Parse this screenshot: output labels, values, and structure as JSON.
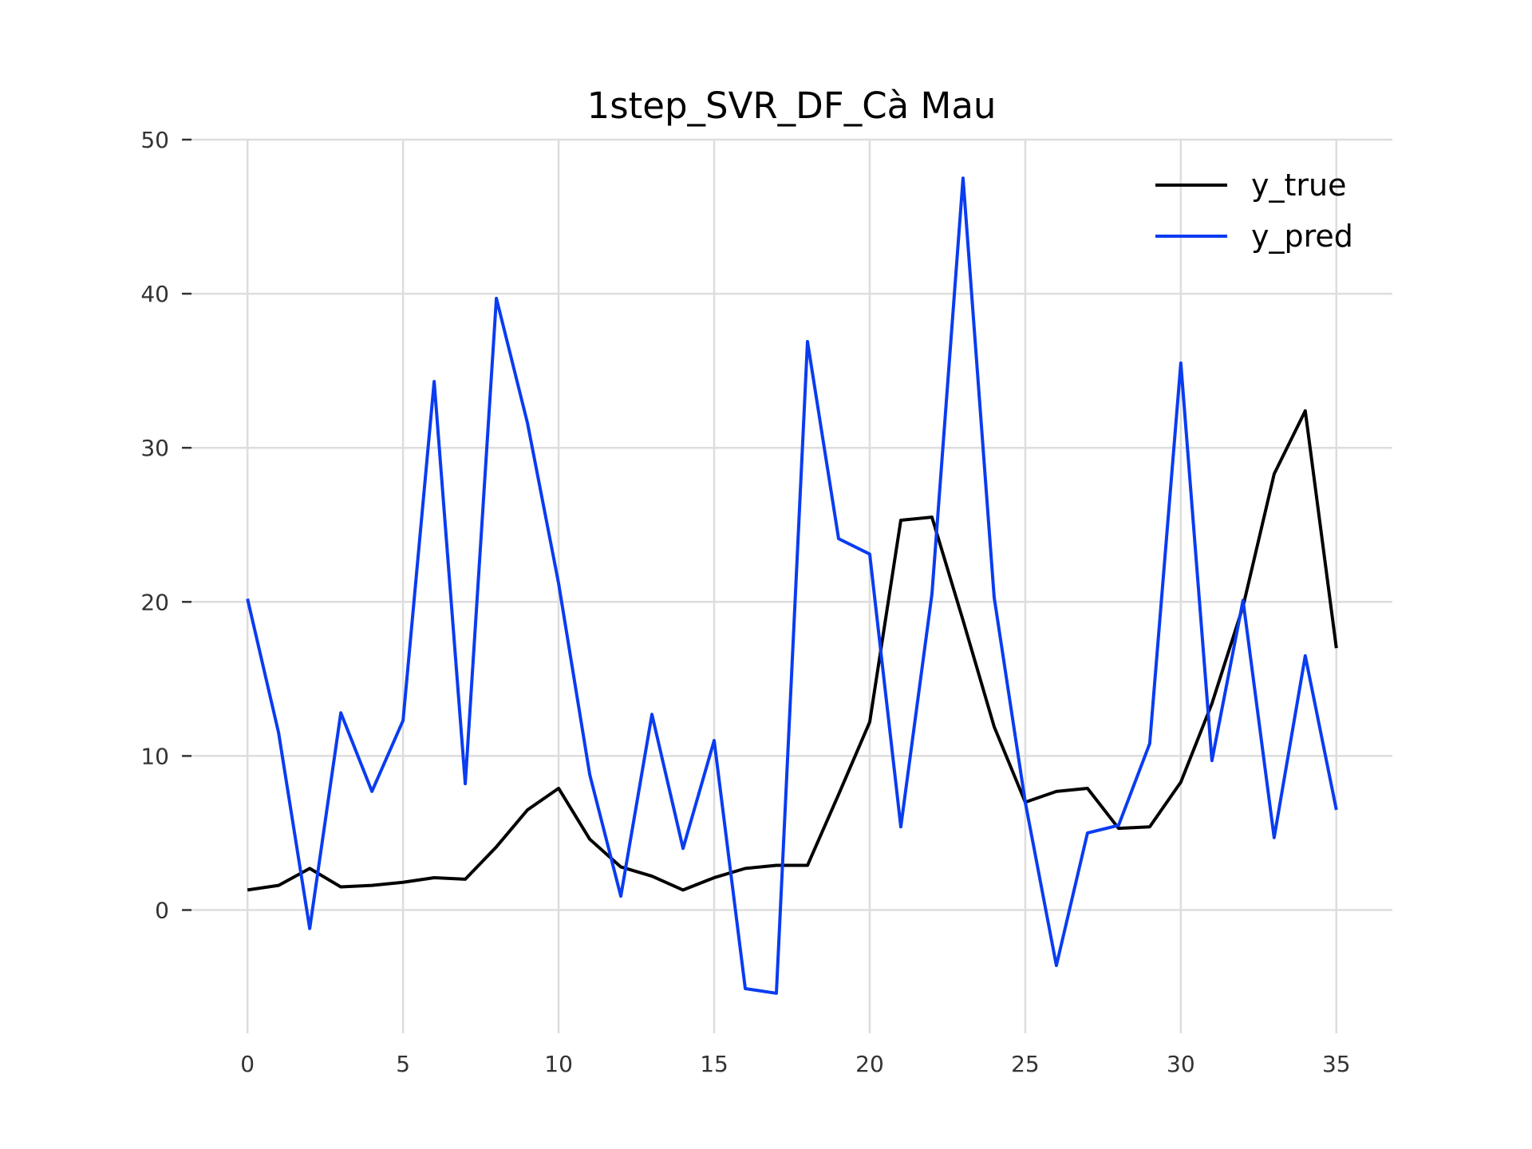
{
  "chart_data": {
    "type": "line",
    "title": "1step_SVR_DF_Cà Mau",
    "xlabel": "",
    "ylabel": "",
    "x": [
      0,
      1,
      2,
      3,
      4,
      5,
      6,
      7,
      8,
      9,
      10,
      11,
      12,
      13,
      14,
      15,
      16,
      17,
      18,
      19,
      20,
      21,
      22,
      23,
      24,
      25,
      26,
      27,
      28,
      29,
      30,
      31,
      32,
      33,
      34,
      35
    ],
    "xlim": [
      -1.8,
      36.8
    ],
    "ylim": [
      -8,
      50
    ],
    "xticks": [
      "0",
      "5",
      "10",
      "15",
      "20",
      "25",
      "30",
      "35"
    ],
    "yticks": [
      "0",
      "10",
      "20",
      "30",
      "40",
      "50"
    ],
    "grid": true,
    "legend_position": "top-right",
    "series": [
      {
        "name": "y_true",
        "color": "#000000",
        "values": [
          1.3,
          1.6,
          2.7,
          1.5,
          1.6,
          1.8,
          2.1,
          2.0,
          4.1,
          6.5,
          7.9,
          4.6,
          2.8,
          2.2,
          1.3,
          2.1,
          2.7,
          2.9,
          2.9,
          7.5,
          12.2,
          25.3,
          25.5,
          18.8,
          11.9,
          7.0,
          7.7,
          7.9,
          5.3,
          5.4,
          8.3,
          13.4,
          19.7,
          28.3,
          32.4,
          17.0
        ]
      },
      {
        "name": "y_pred",
        "color": "#0a3cf0",
        "values": [
          20.2,
          11.5,
          -1.2,
          12.8,
          7.7,
          12.3,
          34.3,
          8.2,
          39.7,
          31.6,
          21.2,
          8.8,
          0.9,
          12.7,
          4.0,
          11.0,
          -5.1,
          -5.4,
          36.9,
          24.1,
          23.1,
          5.4,
          20.5,
          47.5,
          20.3,
          7.0,
          -3.6,
          5.0,
          5.5,
          10.8,
          35.5,
          9.7,
          20.1,
          4.7,
          16.5,
          6.5
        ]
      }
    ]
  }
}
